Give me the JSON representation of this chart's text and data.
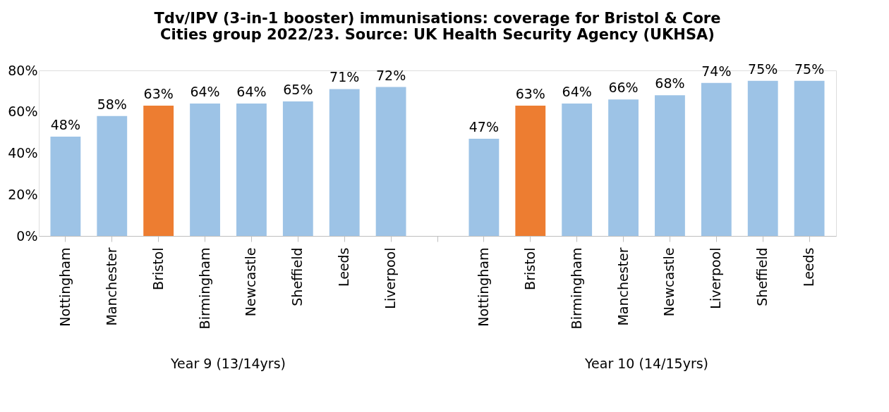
{
  "chart_data": {
    "type": "bar",
    "title": "Tdv/IPV (3-in-1 booster) immunisations: coverage for Bristol & Core Cities group 2022/23. Source: UK Health Security Agency (UKHSA)",
    "categories": [
      "Nottingham",
      "Manchester",
      "Bristol",
      "Birmingham",
      "Newcastle",
      "Sheffield",
      "Leeds",
      "Liverpool",
      null,
      "Nottingham",
      "Bristol",
      "Birmingham",
      "Manchester",
      "Newcastle",
      "Liverpool",
      "Sheffield",
      "Leeds"
    ],
    "values": [
      48,
      58,
      63,
      64,
      64,
      65,
      71,
      72,
      null,
      47,
      63,
      64,
      66,
      68,
      74,
      75,
      75
    ],
    "colors": [
      "#9dc3e6",
      "#9dc3e6",
      "#ed7d31",
      "#9dc3e6",
      "#9dc3e6",
      "#9dc3e6",
      "#9dc3e6",
      "#9dc3e6",
      "#9dc3e6",
      "#9dc3e6",
      "#ed7d31",
      "#9dc3e6",
      "#9dc3e6",
      "#9dc3e6",
      "#9dc3e6",
      "#9dc3e6",
      "#9dc3e6"
    ],
    "value_labels": [
      "48%",
      "58%",
      "63%",
      "64%",
      "64%",
      "65%",
      "71%",
      "72%",
      null,
      "47%",
      "63%",
      "64%",
      "66%",
      "68%",
      "74%",
      "75%",
      "75%"
    ],
    "ylim": [
      0,
      80
    ],
    "yticks": [
      {
        "value": 0,
        "label": "0%"
      },
      {
        "value": 20,
        "label": "20%"
      },
      {
        "value": 40,
        "label": "40%"
      },
      {
        "value": 60,
        "label": "60%"
      },
      {
        "value": 80,
        "label": "80%"
      }
    ],
    "annotations": [
      "Year 9 (13/14yrs)",
      "Year 10 (14/15yrs)"
    ],
    "grid": false
  }
}
